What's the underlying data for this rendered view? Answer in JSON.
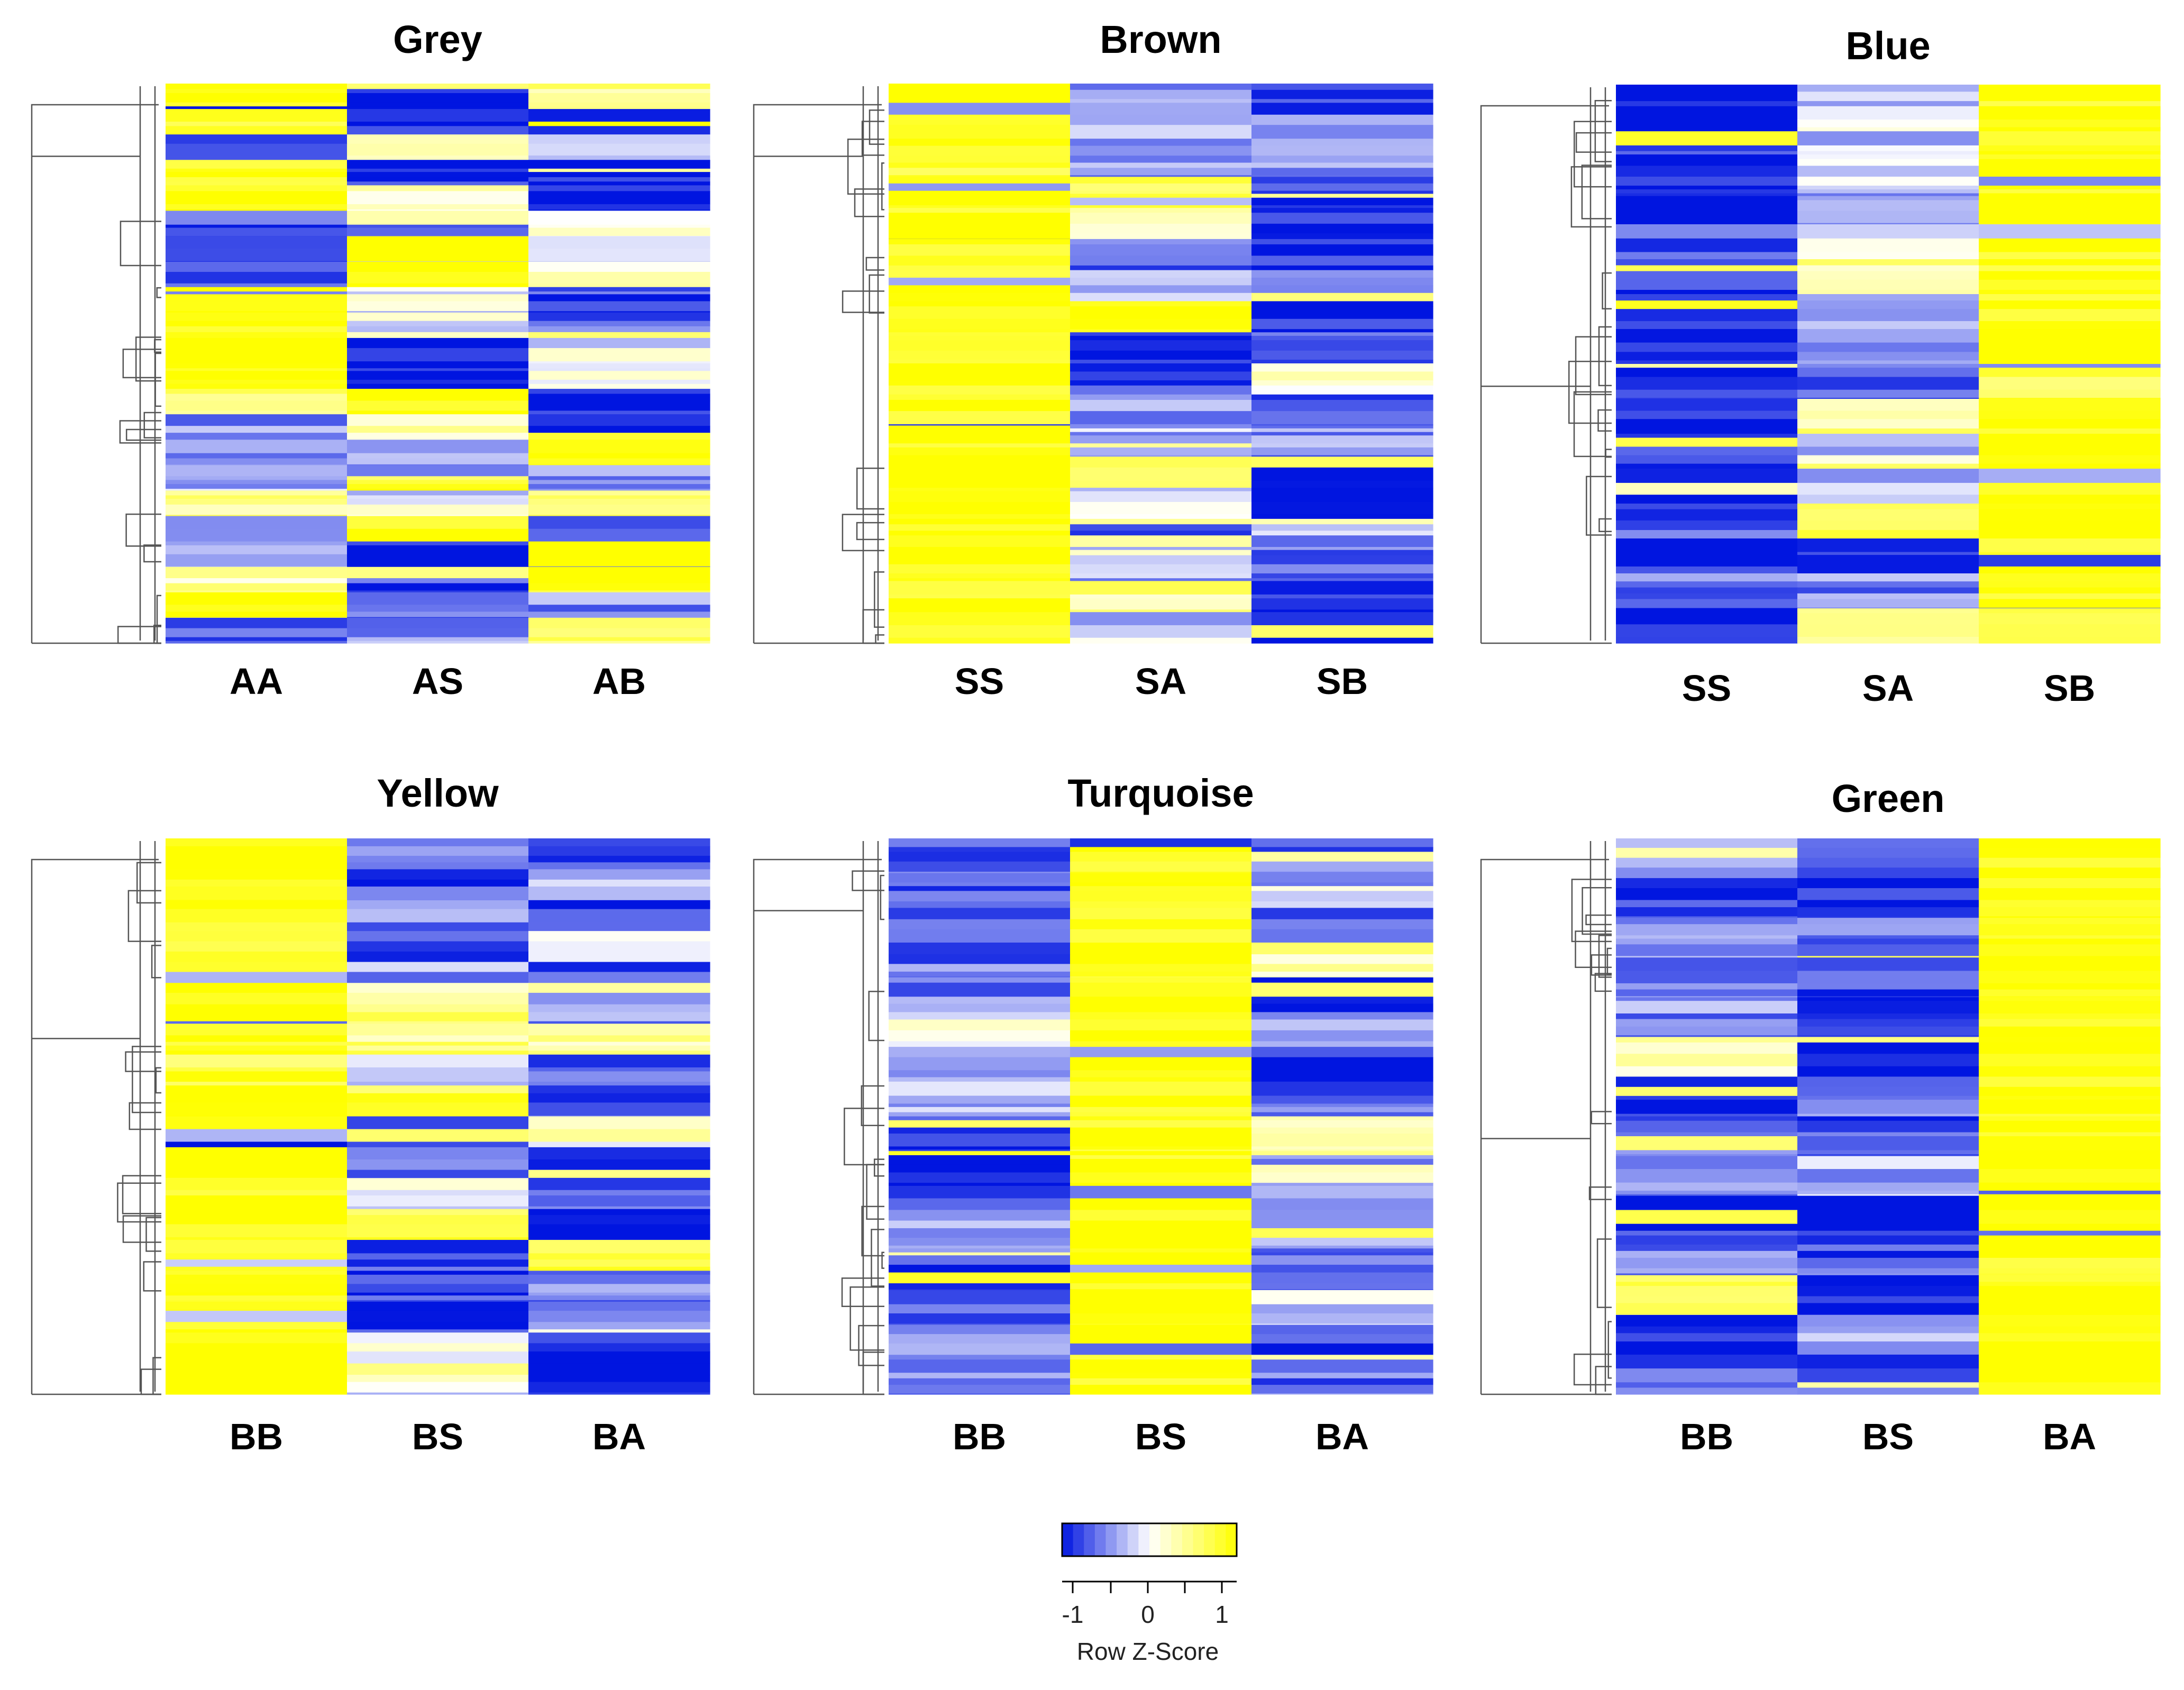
{
  "chart_data": [
    {
      "type": "heatmap",
      "title": "Grey",
      "columns": [
        "AA",
        "AS",
        "AB"
      ],
      "row_bands": [
        [
          1.0,
          -0.9,
          0.4
        ],
        [
          0.8,
          -1.0,
          0.9
        ],
        [
          -0.6,
          0.3,
          -0.4
        ],
        [
          1.0,
          -0.8,
          -1.0
        ],
        [
          1.0,
          0.1,
          -0.9
        ],
        [
          -0.8,
          -0.5,
          0.0
        ],
        [
          -0.9,
          1.0,
          -0.3
        ],
        [
          -0.7,
          1.0,
          0.2
        ],
        [
          1.0,
          -0.4,
          -0.8
        ],
        [
          1.0,
          0.0,
          -0.6
        ],
        [
          1.0,
          -0.9,
          -0.2
        ],
        [
          1.0,
          -1.0,
          0.1
        ],
        [
          0.6,
          0.9,
          -1.0
        ],
        [
          -0.5,
          0.4,
          -1.0
        ],
        [
          -0.6,
          -0.5,
          1.0
        ],
        [
          -0.3,
          0.8,
          -0.5
        ],
        [
          0.5,
          -0.3,
          0.7
        ],
        [
          -0.7,
          1.0,
          -0.6
        ],
        [
          -0.5,
          -1.0,
          1.0
        ],
        [
          0.3,
          -0.8,
          0.9
        ],
        [
          1.0,
          -0.6,
          -0.5
        ],
        [
          -0.6,
          -0.4,
          0.5
        ]
      ]
    },
    {
      "type": "heatmap",
      "title": "Brown",
      "columns": [
        "SS",
        "SA",
        "SB"
      ],
      "row_bands": [
        [
          1.0,
          -0.5,
          -0.7
        ],
        [
          1.0,
          -0.3,
          -0.6
        ],
        [
          0.9,
          -0.4,
          -0.5
        ],
        [
          1.0,
          0.8,
          -0.9
        ],
        [
          1.0,
          0.3,
          -1.0
        ],
        [
          1.0,
          -0.6,
          -0.8
        ],
        [
          1.0,
          -0.4,
          -0.5
        ],
        [
          1.0,
          1.0,
          -1.0
        ],
        [
          1.0,
          -0.9,
          -0.6
        ],
        [
          1.0,
          -0.8,
          0.1
        ],
        [
          1.0,
          -0.5,
          -0.7
        ],
        [
          1.0,
          -0.3,
          -0.5
        ],
        [
          1.0,
          0.5,
          -0.9
        ],
        [
          1.0,
          -0.2,
          -1.0
        ],
        [
          1.0,
          -0.6,
          -0.4
        ],
        [
          1.0,
          -0.4,
          -0.6
        ],
        [
          1.0,
          0.4,
          -1.0
        ],
        [
          1.0,
          -0.2,
          -0.9
        ]
      ]
    },
    {
      "type": "heatmap",
      "title": "Blue",
      "columns": [
        "SS",
        "SA",
        "SB"
      ],
      "row_bands": [
        [
          -0.9,
          -0.3,
          1.0
        ],
        [
          -0.8,
          -0.2,
          1.0
        ],
        [
          -1.0,
          0.0,
          1.0
        ],
        [
          -0.9,
          -0.5,
          1.0
        ],
        [
          -0.8,
          -0.2,
          1.0
        ],
        [
          -0.9,
          0.4,
          0.9
        ],
        [
          -1.0,
          -0.4,
          1.0
        ],
        [
          -0.8,
          -0.3,
          1.0
        ],
        [
          -0.9,
          -0.6,
          0.8
        ],
        [
          -0.9,
          0.5,
          1.0
        ],
        [
          -0.8,
          -0.5,
          1.0
        ],
        [
          -0.9,
          -0.2,
          0.9
        ],
        [
          -0.7,
          0.6,
          0.8
        ],
        [
          -0.9,
          -0.9,
          0.9
        ],
        [
          -0.6,
          -0.5,
          1.0
        ],
        [
          -0.9,
          0.2,
          0.9
        ]
      ]
    },
    {
      "type": "heatmap",
      "title": "Yellow",
      "columns": [
        "BB",
        "BS",
        "BA"
      ],
      "row_bands": [
        [
          1.0,
          -0.6,
          -0.9
        ],
        [
          0.9,
          -0.8,
          -0.3
        ],
        [
          1.0,
          -0.5,
          -0.8
        ],
        [
          0.8,
          -0.7,
          -0.2
        ],
        [
          1.0,
          -0.4,
          -0.7
        ],
        [
          0.9,
          0.6,
          -0.5
        ],
        [
          1.0,
          0.5,
          0.4
        ],
        [
          0.8,
          -0.3,
          -0.6
        ],
        [
          1.0,
          0.8,
          -0.8
        ],
        [
          1.0,
          -0.9,
          0.2
        ],
        [
          1.0,
          -0.6,
          -0.8
        ],
        [
          1.0,
          0.0,
          -0.7
        ],
        [
          0.9,
          0.7,
          -1.0
        ],
        [
          0.9,
          -0.7,
          0.6
        ],
        [
          0.8,
          -0.8,
          -0.5
        ],
        [
          1.0,
          -0.9,
          -0.4
        ],
        [
          1.0,
          0.0,
          -0.9
        ],
        [
          1.0,
          0.3,
          -1.0
        ]
      ]
    },
    {
      "type": "heatmap",
      "title": "Turquoise",
      "columns": [
        "BB",
        "BS",
        "BA"
      ],
      "row_bands": [
        [
          -0.6,
          1.0,
          -0.6
        ],
        [
          -0.8,
          1.0,
          -0.4
        ],
        [
          -0.7,
          1.0,
          -0.7
        ],
        [
          -0.6,
          1.0,
          0.3
        ],
        [
          -0.5,
          1.0,
          -0.9
        ],
        [
          0.2,
          1.0,
          -0.5
        ],
        [
          -0.4,
          1.0,
          -1.0
        ],
        [
          -0.3,
          1.0,
          -0.6
        ],
        [
          -0.9,
          1.0,
          0.4
        ],
        [
          -1.0,
          1.0,
          -0.6
        ],
        [
          -0.6,
          1.0,
          -0.4
        ],
        [
          -0.5,
          1.0,
          -0.5
        ],
        [
          -0.9,
          1.0,
          -0.7
        ],
        [
          -0.6,
          1.0,
          -0.2
        ],
        [
          -0.3,
          1.0,
          -0.9
        ],
        [
          -0.6,
          1.0,
          -0.6
        ]
      ]
    },
    {
      "type": "heatmap",
      "title": "Green",
      "columns": [
        "BB",
        "BS",
        "BA"
      ],
      "row_bands": [
        [
          -0.5,
          -0.8,
          1.0
        ],
        [
          -0.7,
          -0.9,
          1.0
        ],
        [
          -0.4,
          -0.6,
          1.0
        ],
        [
          -0.6,
          -0.8,
          1.0
        ],
        [
          -0.5,
          -1.0,
          1.0
        ],
        [
          0.2,
          -0.9,
          1.0
        ],
        [
          -0.9,
          -0.5,
          1.0
        ],
        [
          -0.7,
          -0.8,
          1.0
        ],
        [
          -0.5,
          -0.3,
          1.0
        ],
        [
          -0.8,
          -0.9,
          1.0
        ],
        [
          -0.6,
          -0.7,
          1.0
        ],
        [
          0.6,
          -1.0,
          1.0
        ],
        [
          -0.9,
          -0.4,
          1.0
        ],
        [
          -0.6,
          -0.8,
          1.0
        ]
      ]
    }
  ],
  "legend": {
    "title": "Row Z-Score",
    "ticks": [
      "-1",
      "0",
      "1"
    ],
    "low_color": "#0015E0",
    "mid_color": "#FFFFFF",
    "high_color": "#FFFF00"
  }
}
